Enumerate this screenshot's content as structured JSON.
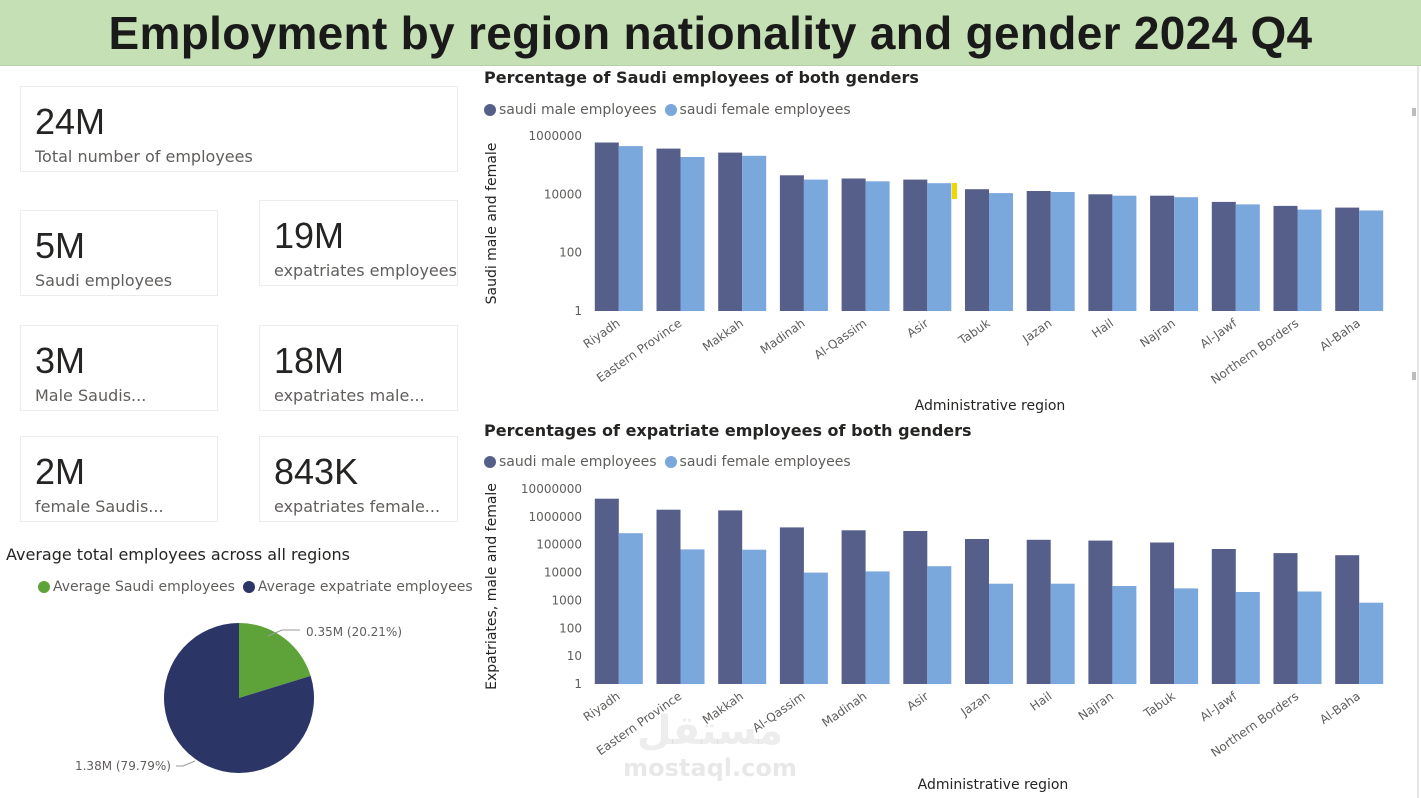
{
  "header": {
    "title": "Employment by region nationality and gender 2024 Q4"
  },
  "cards": [
    {
      "value": "24M",
      "label": "Total number of employees"
    },
    {
      "value": "5M",
      "label": "Saudi employees"
    },
    {
      "value": "19M",
      "label": "expatriates employees"
    },
    {
      "value": "3M",
      "label": "Male Saudis..."
    },
    {
      "value": "18M",
      "label": "expatriates male..."
    },
    {
      "value": "2M",
      "label": "female Saudis..."
    },
    {
      "value": "843K",
      "label": "expatriates female..."
    }
  ],
  "colors": {
    "male": "#565f8a",
    "female": "#7aa7dc",
    "saudi_pie": "#5da33a",
    "expat_pie": "#2b3566",
    "banner": "#c5e0b4"
  },
  "watermark": {
    "text": "mostaql.com"
  },
  "chart_data": [
    {
      "type": "bar",
      "title": "Percentage of Saudi employees of both genders",
      "xlabel": "Administrative region",
      "ylabel": "Saudi male and female",
      "scale": "log",
      "ylim": [
        1,
        1000000
      ],
      "yticks": [
        "1000000",
        "10000",
        "100",
        "1"
      ],
      "legend_position": "top-left",
      "categories": [
        "Riyadh",
        "Eastern Province",
        "Makkah",
        "Madinah",
        "Al-Qassim",
        "Asir",
        "Tabuk",
        "Jazan",
        "Hail",
        "Najran",
        "Al-Jawf",
        "Northern Borders",
        "Al-Baha"
      ],
      "series": [
        {
          "name": "saudi male employees",
          "values": [
            600000,
            370000,
            270000,
            45000,
            35000,
            32000,
            15000,
            13000,
            10000,
            9000,
            5500,
            4000,
            3500
          ]
        },
        {
          "name": "saudi female employees",
          "values": [
            450000,
            190000,
            210000,
            32000,
            28000,
            24000,
            11000,
            12000,
            9000,
            8000,
            4500,
            3000,
            2800
          ]
        }
      ]
    },
    {
      "type": "bar",
      "title": "Percentages of expatriate employees of both genders",
      "xlabel": "Administrative region",
      "ylabel": "Expatriates, male and female",
      "scale": "log",
      "ylim": [
        1,
        10000000
      ],
      "yticks": [
        "10000000",
        "1000000",
        "100000",
        "10000",
        "1000",
        "100",
        "10",
        "1"
      ],
      "legend_position": "top-left",
      "categories": [
        "Riyadh",
        "Eastern Province",
        "Makkah",
        "Al-Qassim",
        "Madinah",
        "Asir",
        "Jazan",
        "Hail",
        "Najran",
        "Tabuk",
        "Al-Jawf",
        "Northern Borders",
        "Al-Baha"
      ],
      "series": [
        {
          "name": "saudi male employees",
          "values": [
            4500000,
            1800000,
            1700000,
            420000,
            330000,
            310000,
            160000,
            150000,
            140000,
            120000,
            70000,
            50000,
            42000
          ]
        },
        {
          "name": "saudi female employees",
          "values": [
            260000,
            68000,
            66000,
            10000,
            11000,
            17000,
            4000,
            4000,
            3300,
            2700,
            2000,
            2100,
            830
          ]
        }
      ]
    },
    {
      "type": "pie",
      "title": "Average total employees across all regions",
      "legend_position": "top",
      "slices": [
        {
          "name": "Average Saudi employees",
          "value": 0.35,
          "percent": 20.21,
          "label": "0.35M (20.21%)"
        },
        {
          "name": "Average expatriate employees",
          "value": 1.38,
          "percent": 79.79,
          "label": "1.38M (79.79%)"
        }
      ]
    }
  ]
}
